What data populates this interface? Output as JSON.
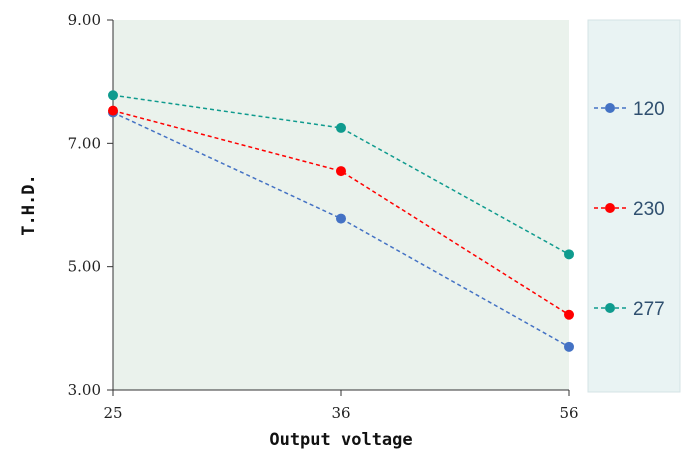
{
  "chart_data": {
    "type": "line",
    "xlabel": "Output voltage",
    "ylabel": "T.H.D.",
    "x": [
      "25",
      "36",
      "56"
    ],
    "ylim": [
      3.0,
      9.0
    ],
    "yticks": [
      "3.00",
      "5.00",
      "7.00",
      "9.00"
    ],
    "grid": false,
    "legend_position": "right",
    "series": [
      {
        "name": "120",
        "color": "#4472c4",
        "values": [
          7.5,
          5.78,
          3.7
        ]
      },
      {
        "name": "230",
        "color": "#ff0000",
        "values": [
          7.53,
          6.55,
          4.22
        ]
      },
      {
        "name": "277",
        "color": "#0f9b8e",
        "values": [
          7.78,
          7.25,
          5.2
        ]
      }
    ],
    "plot_background": "#eaf2ec",
    "legend_background": "#e9f3f3"
  }
}
